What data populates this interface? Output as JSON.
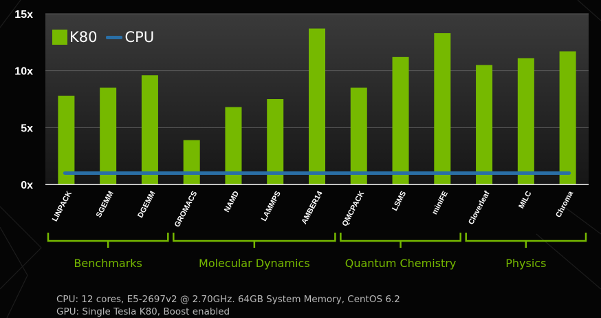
{
  "chart_data": {
    "type": "bar",
    "categories": [
      "LINPACK",
      "SGEMM",
      "DGEMM",
      "GROMACS",
      "NAMD",
      "LAMMPS",
      "AMBER14",
      "QMCPACK",
      "LSMS",
      "miniFE",
      "Cloverleaf",
      "MILC",
      "Chroma"
    ],
    "series": [
      {
        "name": "K80",
        "type": "bar",
        "color": "#76b900",
        "values": [
          7.8,
          8.5,
          9.6,
          3.9,
          6.8,
          7.5,
          13.7,
          8.5,
          11.2,
          13.3,
          10.5,
          11.1,
          11.7
        ]
      },
      {
        "name": "CPU",
        "type": "line",
        "color": "#2a6fa6",
        "values": [
          1,
          1,
          1,
          1,
          1,
          1,
          1,
          1,
          1,
          1,
          1,
          1,
          1
        ]
      }
    ],
    "ylim": [
      0,
      15
    ],
    "yticks": [
      0,
      5,
      10,
      15
    ],
    "ytick_labels": [
      "0x",
      "5x",
      "10x",
      "15x"
    ],
    "legend": "top-left",
    "groups": [
      {
        "label": "Benchmarks",
        "start": 0,
        "end": 2
      },
      {
        "label": "Molecular Dynamics",
        "start": 3,
        "end": 6
      },
      {
        "label": "Quantum Chemistry",
        "start": 7,
        "end": 9
      },
      {
        "label": "Physics",
        "start": 10,
        "end": 12
      }
    ]
  },
  "legend": {
    "k80": "K80",
    "cpu": "CPU"
  },
  "groups": [
    "Benchmarks",
    "Molecular Dynamics",
    "Quantum Chemistry",
    "Physics"
  ],
  "footnotes": [
    "CPU: 12 cores, E5-2697v2 @ 2.70GHz. 64GB System Memory, CentOS 6.2",
    "GPU: Single Tesla K80, Boost enabled"
  ],
  "colors": {
    "accent": "#76b900",
    "cpu": "#2a6fa6",
    "background": "#050505"
  }
}
